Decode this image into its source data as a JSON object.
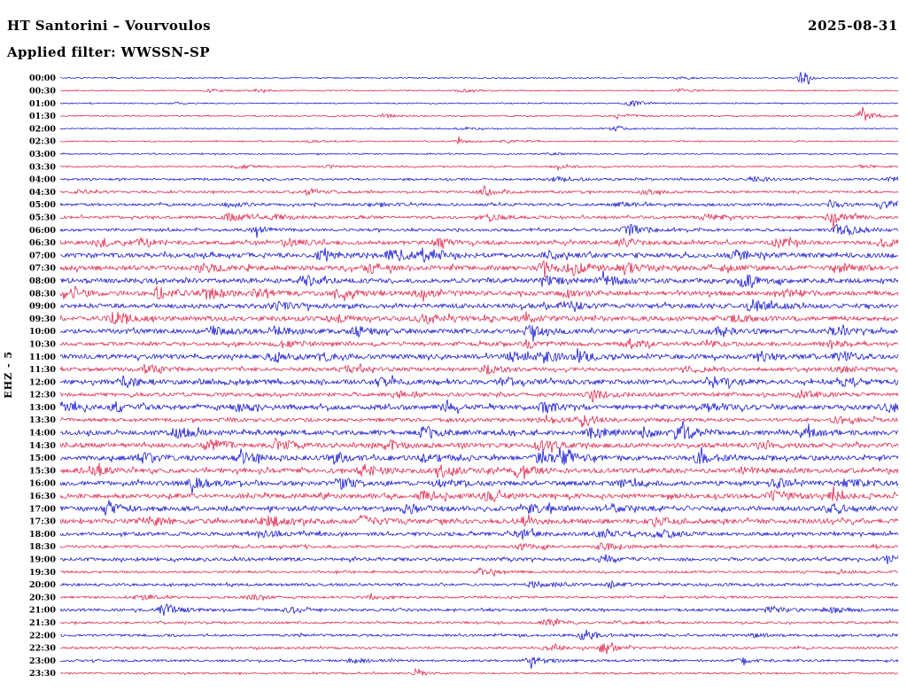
{
  "header": {
    "title": "HT Santorini – Vourvoulos",
    "date": "2025-08-31",
    "filter": "Applied filter: WWSSN-SP"
  },
  "axis": {
    "channel_label": "EHZ - 5"
  },
  "colors": {
    "blue": "#0000cd",
    "red": "#dc143c",
    "text": "#000000",
    "background": "#ffffff"
  },
  "chart_data": {
    "type": "line",
    "subtype": "helicorder-seismogram",
    "station": "HT Santorini – Vourvoulos",
    "channel": "EHZ - 5",
    "filter": "WWSSN-SP",
    "date": "2025-08-31",
    "minutes_per_row": 30,
    "row_order": "top-to-bottom",
    "amplitude_units": "relative-pixels",
    "legend": "rows alternate blue/red per half hour; n = background noise amplitude; e = events [position-fraction, amplitude, width-fraction]",
    "rows": [
      {
        "t": "00:00",
        "c": "blue",
        "n": 0.6,
        "e": [
          [
            0.885,
            10,
            0.006
          ],
          [
            0.74,
            1.2
          ]
        ]
      },
      {
        "t": "00:30",
        "c": "red",
        "n": 0.6,
        "e": [
          [
            0.18,
            1.4
          ],
          [
            0.235,
            1.4
          ],
          [
            0.48,
            1.5
          ],
          [
            0.74,
            2
          ]
        ]
      },
      {
        "t": "01:00",
        "c": "blue",
        "n": 0.6,
        "e": [
          [
            0.14,
            1
          ],
          [
            0.68,
            5,
            0.008
          ]
        ]
      },
      {
        "t": "01:30",
        "c": "red",
        "n": 0.7,
        "e": [
          [
            0.39,
            1.5
          ],
          [
            0.67,
            2.2
          ],
          [
            0.957,
            6.5,
            0.01
          ]
        ]
      },
      {
        "t": "02:00",
        "c": "blue",
        "n": 0.6,
        "e": [
          [
            0.48,
            1.2
          ],
          [
            0.662,
            4,
            0.008
          ]
        ]
      },
      {
        "t": "02:30",
        "c": "red",
        "n": 0.7,
        "e": [
          [
            0.3,
            1.2
          ],
          [
            0.478,
            2.6
          ],
          [
            0.536,
            1.6
          ]
        ]
      },
      {
        "t": "03:00",
        "c": "blue",
        "n": 0.7,
        "e": [
          [
            0.583,
            1.2
          ]
        ]
      },
      {
        "t": "03:30",
        "c": "red",
        "n": 0.8,
        "e": [
          [
            0.213,
            2.2
          ],
          [
            0.32,
            1.5
          ],
          [
            0.594,
            1.5
          ],
          [
            0.96,
            1.3
          ]
        ]
      },
      {
        "t": "04:00",
        "c": "blue",
        "n": 1.2,
        "e": [
          [
            0.594,
            3
          ],
          [
            0.827,
            2.6
          ],
          [
            0.99,
            2.2
          ]
        ]
      },
      {
        "t": "04:30",
        "c": "red",
        "n": 1.2,
        "e": [
          [
            0.023,
            2
          ],
          [
            0.298,
            3.5
          ],
          [
            0.504,
            3.5
          ],
          [
            0.7,
            2.2
          ]
        ]
      },
      {
        "t": "05:00",
        "c": "blue",
        "n": 1.5,
        "e": [
          [
            0.203,
            2
          ],
          [
            0.377,
            2
          ],
          [
            0.668,
            2.2
          ],
          [
            0.922,
            2.6
          ],
          [
            0.985,
            3
          ]
        ]
      },
      {
        "t": "05:30",
        "c": "red",
        "n": 1.5,
        "e": [
          [
            0.203,
            3.5
          ],
          [
            0.256,
            3
          ],
          [
            0.51,
            3
          ],
          [
            0.774,
            3.5
          ],
          [
            0.922,
            6,
            0.012
          ]
        ]
      },
      {
        "t": "06:00",
        "c": "blue",
        "n": 1.5,
        "e": [
          [
            0.235,
            3.5
          ],
          [
            0.679,
            6,
            0.012
          ],
          [
            0.932,
            7.5,
            0.012
          ]
        ]
      },
      {
        "t": "06:30",
        "c": "red",
        "n": 2,
        "e": [
          [
            0.05,
            4
          ],
          [
            0.097,
            4.5
          ],
          [
            0.272,
            5
          ],
          [
            0.451,
            4
          ],
          [
            0.673,
            4
          ],
          [
            0.858,
            4
          ],
          [
            0.985,
            5
          ]
        ]
      },
      {
        "t": "07:00",
        "c": "blue",
        "n": 2.5,
        "e": [
          [
            0.309,
            4
          ],
          [
            0.398,
            7,
            0.014
          ],
          [
            0.436,
            7
          ],
          [
            0.583,
            4
          ],
          [
            0.806,
            5
          ]
        ]
      },
      {
        "t": "07:30",
        "c": "red",
        "n": 2.5,
        "e": [
          [
            0.171,
            4
          ],
          [
            0.372,
            4
          ],
          [
            0.578,
            6
          ],
          [
            0.615,
            6
          ],
          [
            0.673,
            5
          ],
          [
            0.795,
            5
          ],
          [
            0.932,
            4
          ]
        ]
      },
      {
        "t": "08:00",
        "c": "blue",
        "n": 2.5,
        "e": [
          [
            0.293,
            5
          ],
          [
            0.583,
            4
          ],
          [
            0.652,
            5
          ],
          [
            0.816,
            6,
            0.012
          ]
        ]
      },
      {
        "t": "08:30",
        "c": "red",
        "n": 2.5,
        "e": [
          [
            0.007,
            5
          ],
          [
            0.118,
            6
          ],
          [
            0.177,
            5
          ],
          [
            0.235,
            4
          ],
          [
            0.335,
            4
          ],
          [
            0.43,
            4
          ],
          [
            0.605,
            4
          ],
          [
            0.869,
            4
          ]
        ]
      },
      {
        "t": "09:00",
        "c": "blue",
        "n": 2.5,
        "e": [
          [
            0.256,
            4
          ],
          [
            0.605,
            5
          ],
          [
            0.827,
            6.5,
            0.012
          ]
        ]
      },
      {
        "t": "09:30",
        "c": "red",
        "n": 2.5,
        "e": [
          [
            0.066,
            6.5,
            0.012
          ],
          [
            0.325,
            4
          ],
          [
            0.435,
            5
          ],
          [
            0.552,
            4
          ],
          [
            0.806,
            3
          ]
        ]
      },
      {
        "t": "10:00",
        "c": "blue",
        "n": 2.5,
        "e": [
          [
            0.182,
            4.5
          ],
          [
            0.256,
            4
          ],
          [
            0.356,
            4.5
          ],
          [
            0.562,
            5
          ],
          [
            0.784,
            4
          ],
          [
            0.922,
            4
          ]
        ]
      },
      {
        "t": "10:30",
        "c": "red",
        "n": 2,
        "e": [
          [
            0.266,
            3
          ],
          [
            0.562,
            3.5
          ],
          [
            0.679,
            5
          ],
          [
            0.774,
            3.5
          ],
          [
            0.917,
            4
          ]
        ]
      },
      {
        "t": "11:00",
        "c": "blue",
        "n": 2.5,
        "e": [
          [
            0.256,
            4.5
          ],
          [
            0.314,
            4.5
          ],
          [
            0.541,
            4
          ],
          [
            0.578,
            5
          ],
          [
            0.62,
            4.5
          ],
          [
            0.837,
            4.5
          ],
          [
            0.932,
            5
          ]
        ]
      },
      {
        "t": "11:30",
        "c": "red",
        "n": 2,
        "e": [
          [
            0.103,
            5
          ],
          [
            0.351,
            3
          ],
          [
            0.51,
            4
          ],
          [
            0.753,
            4
          ],
          [
            0.932,
            3
          ]
        ]
      },
      {
        "t": "12:00",
        "c": "blue",
        "n": 2.5,
        "e": [
          [
            0.076,
            5
          ],
          [
            0.383,
            4
          ],
          [
            0.531,
            4.5
          ],
          [
            0.779,
            4.5
          ],
          [
            0.932,
            3.5
          ]
        ]
      },
      {
        "t": "12:30",
        "c": "red",
        "n": 2,
        "e": [
          [
            0.404,
            3.5
          ],
          [
            0.636,
            4
          ],
          [
            0.885,
            4.5
          ]
        ]
      },
      {
        "t": "13:00",
        "c": "blue",
        "n": 2.5,
        "e": [
          [
            0.002,
            4
          ],
          [
            0.066,
            4.5
          ],
          [
            0.214,
            4.5
          ],
          [
            0.457,
            4
          ],
          [
            0.578,
            4.5
          ],
          [
            0.774,
            3.5
          ],
          [
            0.99,
            5
          ]
        ]
      },
      {
        "t": "13:30",
        "c": "red",
        "n": 2,
        "e": [
          [
            0.578,
            4
          ],
          [
            0.626,
            4
          ],
          [
            0.927,
            4.5
          ]
        ]
      },
      {
        "t": "14:00",
        "c": "blue",
        "n": 2.5,
        "e": [
          [
            0.14,
            5
          ],
          [
            0.436,
            6
          ],
          [
            0.636,
            6
          ],
          [
            0.695,
            5.5
          ],
          [
            0.742,
            7,
            0.013
          ],
          [
            0.885,
            6.5
          ]
        ]
      },
      {
        "t": "14:30",
        "c": "red",
        "n": 2.5,
        "e": [
          [
            0.182,
            5
          ],
          [
            0.261,
            6
          ],
          [
            0.393,
            4.5
          ],
          [
            0.573,
            4.5
          ],
          [
            0.837,
            3
          ]
        ]
      },
      {
        "t": "15:00",
        "c": "blue",
        "n": 2.5,
        "e": [
          [
            0.097,
            5.5
          ],
          [
            0.219,
            5.5
          ],
          [
            0.325,
            5
          ],
          [
            0.436,
            5
          ],
          [
            0.573,
            5
          ],
          [
            0.6,
            5
          ],
          [
            0.763,
            5.5
          ]
        ]
      },
      {
        "t": "15:30",
        "c": "red",
        "n": 2.5,
        "e": [
          [
            0.034,
            5
          ],
          [
            0.362,
            6
          ],
          [
            0.457,
            5
          ],
          [
            0.547,
            5.5
          ],
          [
            0.816,
            3
          ]
        ]
      },
      {
        "t": "16:00",
        "c": "blue",
        "n": 2.5,
        "e": [
          [
            0.161,
            5.5
          ],
          [
            0.335,
            5.5
          ],
          [
            0.457,
            3.5
          ],
          [
            0.668,
            3
          ],
          [
            0.853,
            4
          ],
          [
            0.938,
            7,
            0.012
          ]
        ]
      },
      {
        "t": "16:30",
        "c": "red",
        "n": 2.5,
        "e": [
          [
            0.436,
            4.5
          ],
          [
            0.51,
            4
          ],
          [
            0.853,
            5
          ],
          [
            0.922,
            4
          ]
        ]
      },
      {
        "t": "17:00",
        "c": "blue",
        "n": 2.5,
        "e": [
          [
            0.06,
            5
          ],
          [
            0.414,
            4.5
          ],
          [
            0.562,
            4.5
          ],
          [
            0.658,
            4
          ],
          [
            0.922,
            5.5
          ]
        ]
      },
      {
        "t": "17:30",
        "c": "red",
        "n": 2.5,
        "e": [
          [
            0.108,
            4.5
          ],
          [
            0.245,
            6.5,
            0.013
          ],
          [
            0.362,
            4.5
          ],
          [
            0.552,
            3.5
          ],
          [
            0.71,
            4.5
          ]
        ]
      },
      {
        "t": "18:00",
        "c": "blue",
        "n": 2,
        "e": [
          [
            0.245,
            2.5
          ],
          [
            0.552,
            3.5
          ],
          [
            0.647,
            4
          ],
          [
            0.716,
            4.5
          ]
        ]
      },
      {
        "t": "18:30",
        "c": "red",
        "n": 1.5,
        "e": [
          [
            0.552,
            2.5
          ],
          [
            0.647,
            4.5
          ]
        ]
      },
      {
        "t": "19:00",
        "c": "blue",
        "n": 1.8,
        "e": [
          [
            0.647,
            2.5
          ],
          [
            0.99,
            4.5
          ]
        ]
      },
      {
        "t": "19:30",
        "c": "red",
        "n": 1.2,
        "e": [
          [
            0.504,
            4
          ],
          [
            0.932,
            2
          ]
        ]
      },
      {
        "t": "20:00",
        "c": "blue",
        "n": 1.5,
        "e": [
          [
            0.567,
            4
          ],
          [
            0.658,
            3.5
          ]
        ]
      },
      {
        "t": "20:30",
        "c": "red",
        "n": 1.2,
        "e": [
          [
            0.097,
            2.5
          ],
          [
            0.229,
            2.5
          ],
          [
            0.372,
            1.8
          ]
        ]
      },
      {
        "t": "21:00",
        "c": "blue",
        "n": 1.5,
        "e": [
          [
            0.124,
            6.5,
            0.012
          ],
          [
            0.277,
            3.5
          ],
          [
            0.848,
            3
          ],
          [
            0.922,
            2.5
          ]
        ]
      },
      {
        "t": "21:30",
        "c": "red",
        "n": 1.2,
        "e": [
          [
            0.583,
            3.5
          ],
          [
            0.668,
            2
          ]
        ]
      },
      {
        "t": "22:00",
        "c": "blue",
        "n": 1.3,
        "e": [
          [
            0.626,
            6,
            0.011
          ],
          [
            0.827,
            2
          ]
        ]
      },
      {
        "t": "22:30",
        "c": "red",
        "n": 1.2,
        "e": [
          [
            0.584,
            3
          ],
          [
            0.647,
            5,
            0.01
          ]
        ]
      },
      {
        "t": "23:00",
        "c": "blue",
        "n": 1.2,
        "e": [
          [
            0.351,
            3
          ],
          [
            0.562,
            4.5
          ],
          [
            0.816,
            2
          ]
        ]
      },
      {
        "t": "23:30",
        "c": "red",
        "n": 1,
        "e": [
          [
            0.425,
            6,
            0.005
          ]
        ]
      }
    ]
  }
}
